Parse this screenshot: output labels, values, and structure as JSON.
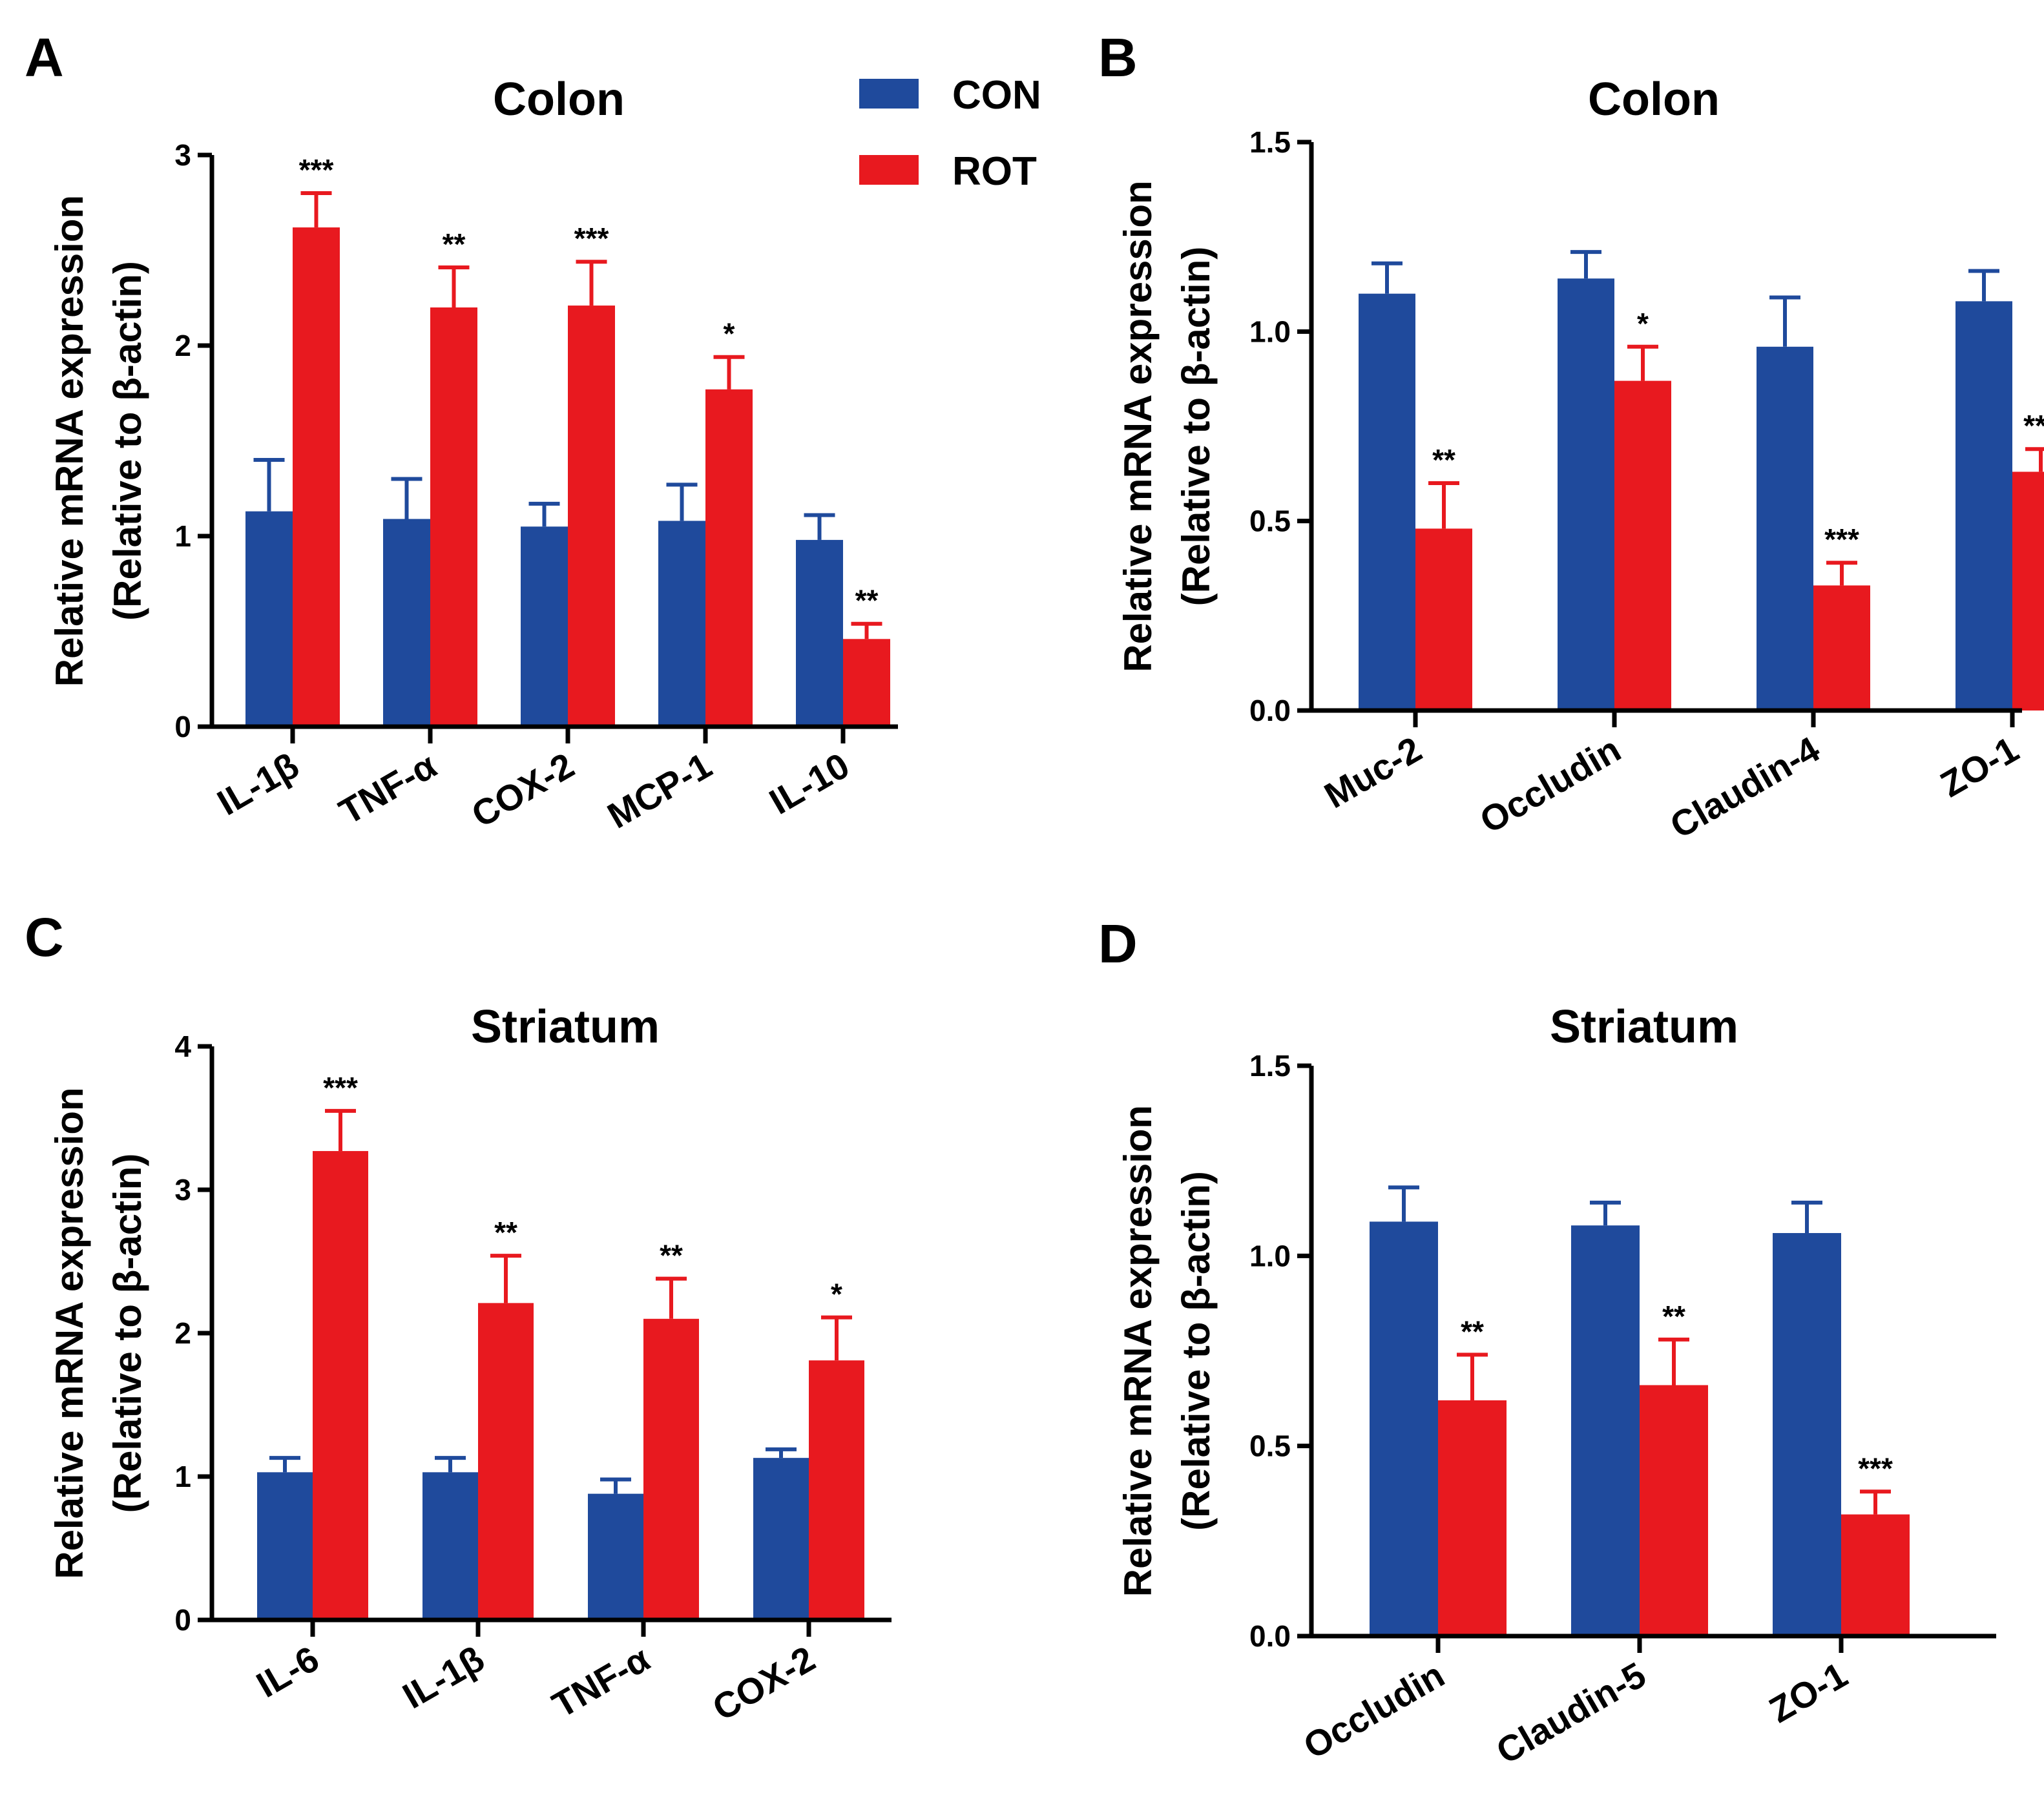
{
  "legend": {
    "items": [
      {
        "label": "CON",
        "color": "#1f4a9c"
      },
      {
        "label": "ROT",
        "color": "#e8191f"
      }
    ]
  },
  "chart_data": [
    {
      "panel": "A",
      "type": "bar",
      "title": "Colon",
      "ylabel_line1": "Relative mRNA expression",
      "ylabel_line2": "(Relative to β-actin)",
      "ylim": [
        0,
        3
      ],
      "yticks": [
        0,
        1,
        2,
        3
      ],
      "ytick_labels": [
        "0",
        "1",
        "2",
        "3"
      ],
      "categories": [
        "IL-1β",
        "TNF-α",
        "COX-2",
        "MCP-1",
        "IL-10"
      ],
      "series": [
        {
          "name": "CON",
          "values": [
            1.13,
            1.09,
            1.05,
            1.08,
            0.98
          ],
          "errors": [
            0.27,
            0.21,
            0.12,
            0.19,
            0.13
          ]
        },
        {
          "name": "ROT",
          "values": [
            2.62,
            2.2,
            2.21,
            1.77,
            0.46
          ],
          "errors": [
            0.18,
            0.21,
            0.23,
            0.17,
            0.08
          ]
        }
      ],
      "significance": [
        "***",
        "**",
        "***",
        "*",
        "**"
      ]
    },
    {
      "panel": "B",
      "type": "bar",
      "title": "Colon",
      "ylabel_line1": "Relative mRNA expression",
      "ylabel_line2": "(Relative to β-actin)",
      "ylim": [
        0,
        1.5
      ],
      "yticks": [
        0,
        0.5,
        1.0,
        1.5
      ],
      "ytick_labels": [
        "0.0",
        "0.5",
        "1.0",
        "1.5"
      ],
      "categories": [
        "Muc-2",
        "Occludin",
        "Claudin-4",
        "ZO-1"
      ],
      "series": [
        {
          "name": "CON",
          "values": [
            1.1,
            1.14,
            0.96,
            1.08
          ],
          "errors": [
            0.08,
            0.07,
            0.13,
            0.08
          ]
        },
        {
          "name": "ROT",
          "values": [
            0.48,
            0.87,
            0.33,
            0.63
          ],
          "errors": [
            0.12,
            0.09,
            0.06,
            0.06
          ]
        }
      ],
      "significance": [
        "**",
        "*",
        "***",
        "***"
      ]
    },
    {
      "panel": "C",
      "type": "bar",
      "title": "Striatum",
      "ylabel_line1": "Relative mRNA expression",
      "ylabel_line2": "(Relative to β-actin)",
      "ylim": [
        0,
        4
      ],
      "yticks": [
        0,
        1,
        2,
        3,
        4
      ],
      "ytick_labels": [
        "0",
        "1",
        "2",
        "3",
        "4"
      ],
      "categories": [
        "IL-6",
        "IL-1β",
        "TNF-α",
        "COX-2"
      ],
      "series": [
        {
          "name": "CON",
          "values": [
            1.03,
            1.03,
            0.88,
            1.13
          ],
          "errors": [
            0.1,
            0.1,
            0.1,
            0.06
          ]
        },
        {
          "name": "ROT",
          "values": [
            3.27,
            2.21,
            2.1,
            1.81
          ],
          "errors": [
            0.28,
            0.33,
            0.28,
            0.3
          ]
        }
      ],
      "significance": [
        "***",
        "**",
        "**",
        "*"
      ]
    },
    {
      "panel": "D",
      "type": "bar",
      "title": "Striatum",
      "ylabel_line1": "Relative mRNA expression",
      "ylabel_line2": "(Relative to β-actin)",
      "ylim": [
        0,
        1.5
      ],
      "yticks": [
        0,
        0.5,
        1.0,
        1.5
      ],
      "ytick_labels": [
        "0.0",
        "0.5",
        "1.0",
        "1.5"
      ],
      "categories": [
        "Occludin",
        "Claudin-5",
        "ZO-1"
      ],
      "series": [
        {
          "name": "CON",
          "values": [
            1.09,
            1.08,
            1.06
          ],
          "errors": [
            0.09,
            0.06,
            0.08
          ]
        },
        {
          "name": "ROT",
          "values": [
            0.62,
            0.66,
            0.32
          ],
          "errors": [
            0.12,
            0.12,
            0.06
          ]
        }
      ],
      "significance": [
        "**",
        "**",
        "***"
      ]
    }
  ]
}
